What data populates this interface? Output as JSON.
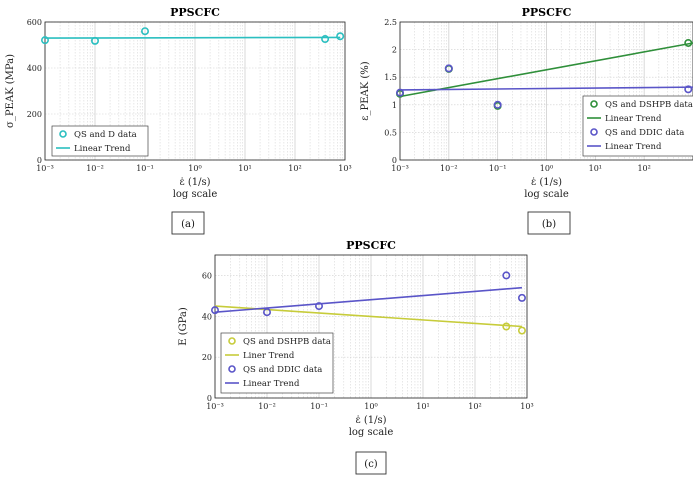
{
  "colors": {
    "cyan": "#2bbfc0",
    "green": "#2f8f3a",
    "blue": "#5a55c8",
    "yellow": "#c7cc3a",
    "grid": "#cfcfcf"
  },
  "panels": [
    {
      "panel_label": "(a)",
      "chart_data": {
        "type": "scatter",
        "title": "PPSCFC",
        "xscale": "log",
        "xlim": [
          0.001,
          1000
        ],
        "xticks": [
          "10⁻³",
          "10⁻²",
          "10⁻¹",
          "10⁰",
          "10¹",
          "10²",
          "10³"
        ],
        "xlabel": "ε̇ (1/s)",
        "xlabel2": "log scale",
        "ylabel": "σ_PEAK (MPa)",
        "ylim": [
          0,
          600
        ],
        "yticks": [
          "0",
          "200",
          "400",
          "600"
        ],
        "ytick_values": [
          0,
          200,
          400,
          600
        ],
        "legend_position": "lower-left",
        "series": [
          {
            "name": "QS and D data",
            "kind": "points",
            "color": "#2bbfc0",
            "x": [
              0.001,
              0.01,
              0.1,
              400,
              800
            ],
            "y": [
              521,
              518,
              560,
              526,
              538
            ]
          },
          {
            "name": "Linear Trend",
            "kind": "line",
            "color": "#2bbfc0",
            "x": [
              0.001,
              800
            ],
            "y": [
              530,
              533
            ]
          }
        ]
      }
    },
    {
      "panel_label": "(b)",
      "chart_data": {
        "type": "scatter",
        "title": "PPSCFC",
        "xscale": "log",
        "xlim": [
          0.001,
          1000
        ],
        "xticks": [
          "10⁻³",
          "10⁻²",
          "10⁻¹",
          "10⁰",
          "10¹",
          "10²"
        ],
        "xlabel": "ε̇ (1/s)",
        "xlabel2": "log scale",
        "ylabel": "ε_PEAK (%)",
        "ylim": [
          0,
          2.5
        ],
        "yticks": [
          "0",
          "0.5",
          "1",
          "1.5",
          "2",
          "2.5"
        ],
        "ytick_values": [
          0,
          0.5,
          1,
          1.5,
          2,
          2.5
        ],
        "legend_position": "lower-right",
        "series": [
          {
            "name": "QS and DSHPB data",
            "kind": "points",
            "color": "#2f8f3a",
            "x": [
              0.001,
              0.01,
              0.1,
              800
            ],
            "y": [
              1.2,
              1.65,
              0.98,
              2.12
            ]
          },
          {
            "name": "Linear Trend",
            "kind": "line",
            "color": "#2f8f3a",
            "x": [
              0.001,
              1000
            ],
            "y": [
              1.15,
              2.12
            ]
          },
          {
            "name": "QS and DDIC data",
            "kind": "points",
            "color": "#5a55c8",
            "x": [
              0.001,
              0.01,
              0.1,
              800
            ],
            "y": [
              1.22,
              1.66,
              1.0,
              1.28
            ]
          },
          {
            "name": "Linear Trend",
            "kind": "line",
            "color": "#5a55c8",
            "x": [
              0.001,
              1000
            ],
            "y": [
              1.27,
              1.32
            ]
          }
        ]
      }
    },
    {
      "panel_label": "(c)",
      "chart_data": {
        "type": "scatter",
        "title": "PPSCFC",
        "xscale": "log",
        "xlim": [
          0.001,
          1000
        ],
        "xticks": [
          "10⁻³",
          "10⁻²",
          "10⁻¹",
          "10⁰",
          "10¹",
          "10²",
          "10³"
        ],
        "xlabel": "ε̇ (1/s)",
        "xlabel2": "log scale",
        "ylabel": "E (GPa)",
        "ylim": [
          0,
          70
        ],
        "yticks": [
          "0",
          "20",
          "40",
          "60"
        ],
        "ytick_values": [
          0,
          20,
          40,
          60
        ],
        "legend_position": "lower-left",
        "series": [
          {
            "name": "QS and DSHPB data",
            "kind": "points",
            "color": "#c7cc3a",
            "x": [
              400,
              800
            ],
            "y": [
              35,
              33
            ]
          },
          {
            "name": "Liner Trend",
            "kind": "line",
            "color": "#c7cc3a",
            "x": [
              0.001,
              800
            ],
            "y": [
              45,
              35
            ]
          },
          {
            "name": "QS and DDIC data",
            "kind": "points",
            "color": "#5a55c8",
            "x": [
              0.001,
              0.01,
              0.1,
              400,
              800
            ],
            "y": [
              43,
              42,
              45,
              60,
              49
            ]
          },
          {
            "name": "Linear Trend",
            "kind": "line",
            "color": "#5a55c8",
            "x": [
              0.001,
              800
            ],
            "y": [
              42,
              54
            ]
          }
        ]
      }
    }
  ]
}
